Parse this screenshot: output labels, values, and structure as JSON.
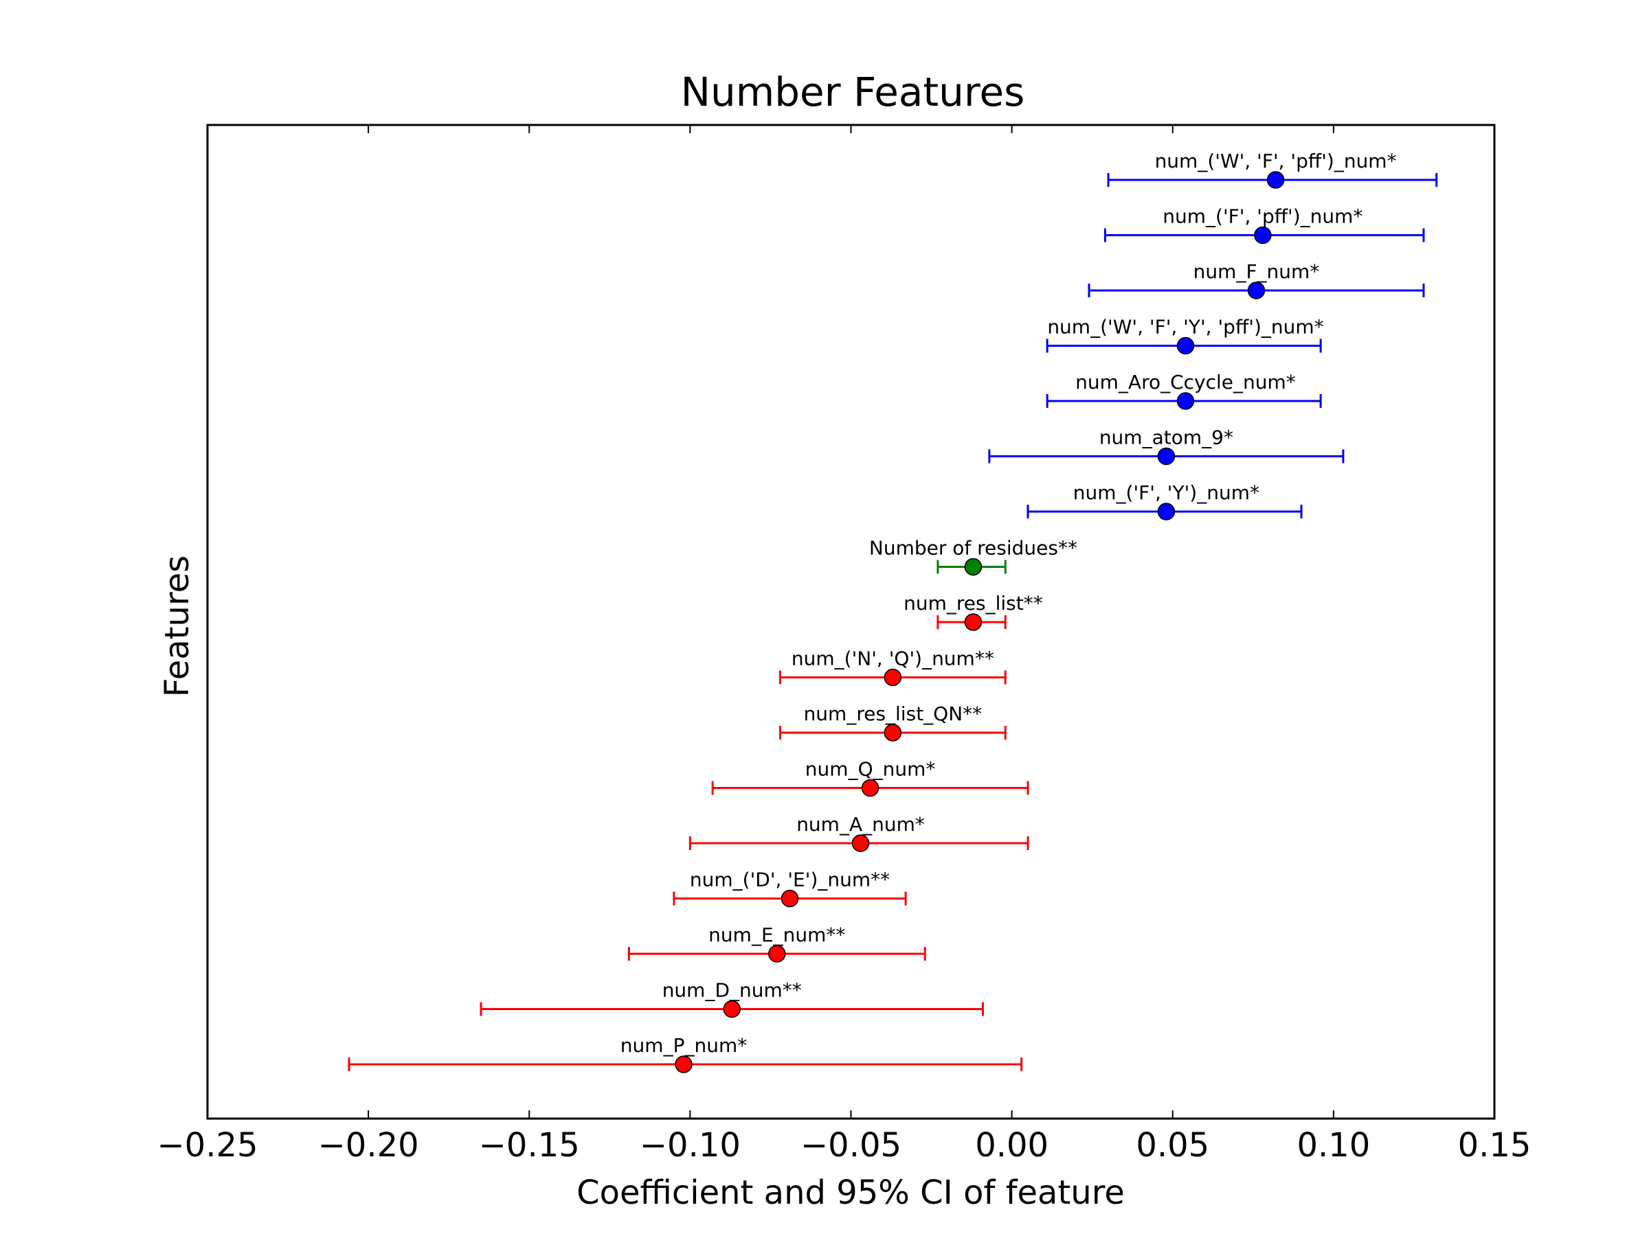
{
  "chart_data": {
    "type": "errorbar",
    "title": "Number Features",
    "xlabel": "Coefficient and 95% CI of feature",
    "ylabel": "Features",
    "xlim": [
      -0.25,
      0.15
    ],
    "x_ticks": [
      -0.25,
      -0.2,
      -0.15,
      -0.1,
      -0.05,
      0.0,
      0.05,
      0.1,
      0.15
    ],
    "x_tick_labels": [
      "−0.25",
      "−0.20",
      "−0.15",
      "−0.10",
      "−0.05",
      "0.00",
      "0.05",
      "0.10",
      "0.15"
    ],
    "grid": false,
    "colors": {
      "positive": "#0000ff",
      "neutral": "#008000",
      "negative": "#ff0000"
    },
    "points": [
      {
        "label": "num_('W', 'F', 'pff')_num*",
        "coef": 0.082,
        "lo": 0.03,
        "hi": 0.132,
        "color": "#0000ff"
      },
      {
        "label": "num_('F', 'pff')_num*",
        "coef": 0.078,
        "lo": 0.029,
        "hi": 0.128,
        "color": "#0000ff"
      },
      {
        "label": "num_F_num*",
        "coef": 0.076,
        "lo": 0.024,
        "hi": 0.128,
        "color": "#0000ff"
      },
      {
        "label": "num_('W', 'F', 'Y', 'pff')_num*",
        "coef": 0.054,
        "lo": 0.011,
        "hi": 0.096,
        "color": "#0000ff"
      },
      {
        "label": "num_Aro_Ccycle_num*",
        "coef": 0.054,
        "lo": 0.011,
        "hi": 0.096,
        "color": "#0000ff"
      },
      {
        "label": "num_atom_9*",
        "coef": 0.048,
        "lo": -0.007,
        "hi": 0.103,
        "color": "#0000ff"
      },
      {
        "label": "num_('F', 'Y')_num*",
        "coef": 0.048,
        "lo": 0.005,
        "hi": 0.09,
        "color": "#0000ff"
      },
      {
        "label": "Number of residues**",
        "coef": -0.012,
        "lo": -0.023,
        "hi": -0.002,
        "color": "#008000"
      },
      {
        "label": "num_res_list**",
        "coef": -0.012,
        "lo": -0.023,
        "hi": -0.002,
        "color": "#ff0000"
      },
      {
        "label": "num_('N', 'Q')_num**",
        "coef": -0.037,
        "lo": -0.072,
        "hi": -0.002,
        "color": "#ff0000"
      },
      {
        "label": "num_res_list_QN**",
        "coef": -0.037,
        "lo": -0.072,
        "hi": -0.002,
        "color": "#ff0000"
      },
      {
        "label": "num_Q_num*",
        "coef": -0.044,
        "lo": -0.093,
        "hi": 0.005,
        "color": "#ff0000"
      },
      {
        "label": "num_A_num*",
        "coef": -0.047,
        "lo": -0.1,
        "hi": 0.005,
        "color": "#ff0000"
      },
      {
        "label": "num_('D', 'E')_num**",
        "coef": -0.069,
        "lo": -0.105,
        "hi": -0.033,
        "color": "#ff0000"
      },
      {
        "label": "num_E_num**",
        "coef": -0.073,
        "lo": -0.119,
        "hi": -0.027,
        "color": "#ff0000"
      },
      {
        "label": "num_D_num**",
        "coef": -0.087,
        "lo": -0.165,
        "hi": -0.009,
        "color": "#ff0000"
      },
      {
        "label": "num_P_num*",
        "coef": -0.102,
        "lo": -0.206,
        "hi": 0.003,
        "color": "#ff0000"
      }
    ]
  }
}
